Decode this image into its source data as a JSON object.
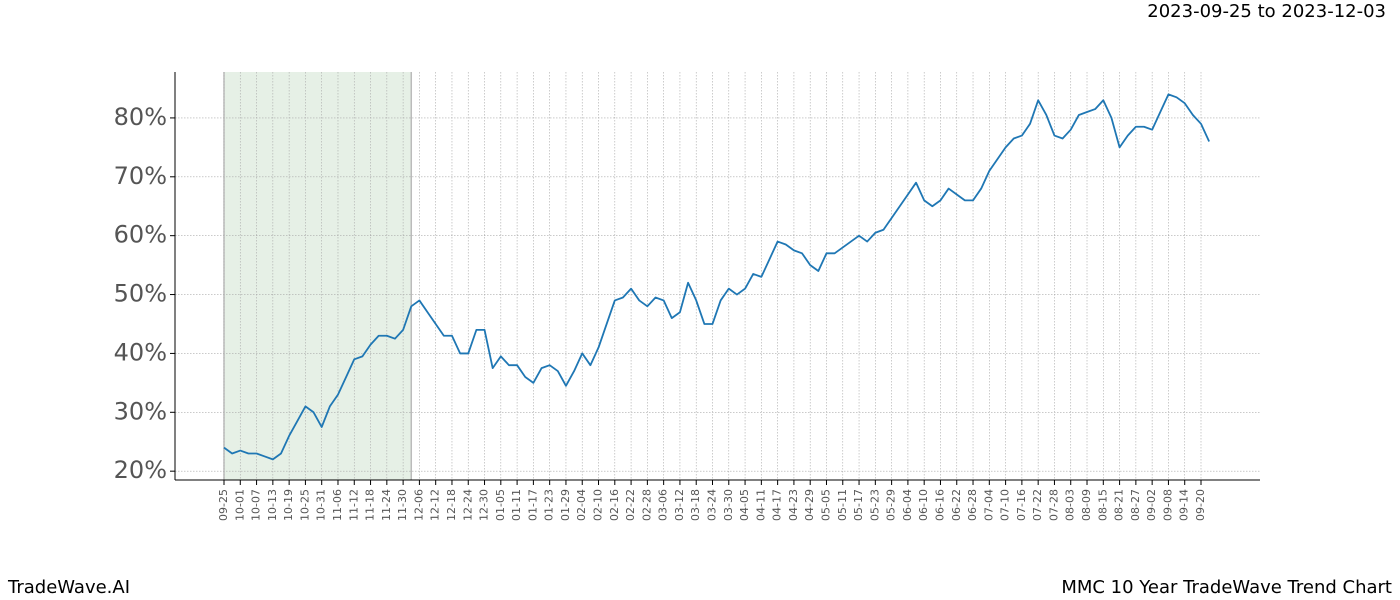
{
  "chart_data": {
    "type": "line",
    "title": "2023-09-25 to 2023-12-03",
    "footer_left": "TradeWave.AI",
    "footer_right": "MMC 10 Year TradeWave Trend Chart",
    "categories": [
      "09-25",
      null,
      "10-01",
      null,
      "10-07",
      null,
      "10-13",
      null,
      "10-19",
      null,
      "10-25",
      null,
      "10-31",
      null,
      "11-06",
      null,
      "11-12",
      null,
      "11-18",
      null,
      "11-24",
      null,
      "11-30",
      null,
      "12-06",
      null,
      "12-12",
      null,
      "12-18",
      null,
      "12-24",
      null,
      "12-30",
      null,
      "01-05",
      null,
      "01-11",
      null,
      "01-17",
      null,
      "01-23",
      null,
      "01-29",
      null,
      "02-04",
      null,
      "02-10",
      null,
      "02-16",
      null,
      "02-22",
      null,
      "02-28",
      null,
      "03-06",
      null,
      "03-12",
      null,
      "03-18",
      null,
      "03-24",
      null,
      "03-30",
      null,
      "04-05",
      null,
      "04-11",
      null,
      "04-17",
      null,
      "04-23",
      null,
      "04-29",
      null,
      "05-05",
      null,
      "05-11",
      null,
      "05-17",
      null,
      "05-23",
      null,
      "05-29",
      null,
      "06-04",
      null,
      "06-10",
      null,
      "06-16",
      null,
      "06-22",
      null,
      "06-28",
      null,
      "07-04",
      null,
      "07-10",
      null,
      "07-16",
      null,
      "07-22",
      null,
      "07-28",
      null,
      "08-03",
      null,
      "08-09",
      null,
      "08-15",
      null,
      "08-21",
      null,
      "08-27",
      null,
      "09-02",
      null,
      "09-08",
      null,
      "09-14",
      null,
      "09-20",
      null
    ],
    "series": [
      {
        "color": "#1f77b4",
        "values": [
          24,
          23,
          23.5,
          23,
          23,
          22.5,
          22,
          23,
          26,
          28.5,
          31,
          30,
          27.5,
          31,
          33,
          36,
          39,
          39.5,
          41.5,
          43,
          43,
          42.5,
          44,
          48,
          49,
          47,
          45,
          43,
          43,
          40,
          40,
          44,
          44,
          37.5,
          39.5,
          38,
          38,
          36,
          35,
          37.5,
          38,
          37,
          34.5,
          37,
          40,
          38,
          41,
          45,
          49,
          49.5,
          51,
          49,
          48,
          49.5,
          49,
          46,
          47,
          52,
          49,
          45,
          45,
          49,
          51,
          50,
          51,
          53.5,
          53,
          56,
          59,
          58.5,
          57.5,
          57,
          55,
          54,
          57,
          57,
          58,
          59,
          60,
          59,
          60.5,
          61,
          63,
          65,
          67,
          69,
          66,
          65,
          66,
          68,
          67,
          66,
          66,
          68,
          71,
          73,
          75,
          76.5,
          77,
          79,
          83,
          80.5,
          77,
          76.5,
          78,
          80.5,
          81,
          81.5,
          83,
          80,
          75,
          77,
          78.5,
          78.5,
          78,
          81,
          84,
          83.5,
          82.5,
          80.5,
          79,
          76
        ]
      }
    ],
    "highlight": {
      "start_index": 0,
      "end_index": 23,
      "color": "#e6f0e6"
    },
    "ylim": [
      18.5,
      87.8
    ],
    "yticks": [
      {
        "value": 20,
        "label": "20%"
      },
      {
        "value": 30,
        "label": "30%"
      },
      {
        "value": 40,
        "label": "40%"
      },
      {
        "value": 50,
        "label": "50%"
      },
      {
        "value": 60,
        "label": "60%"
      },
      {
        "value": 70,
        "label": "70%"
      },
      {
        "value": 80,
        "label": "80%"
      }
    ],
    "grid": true
  }
}
